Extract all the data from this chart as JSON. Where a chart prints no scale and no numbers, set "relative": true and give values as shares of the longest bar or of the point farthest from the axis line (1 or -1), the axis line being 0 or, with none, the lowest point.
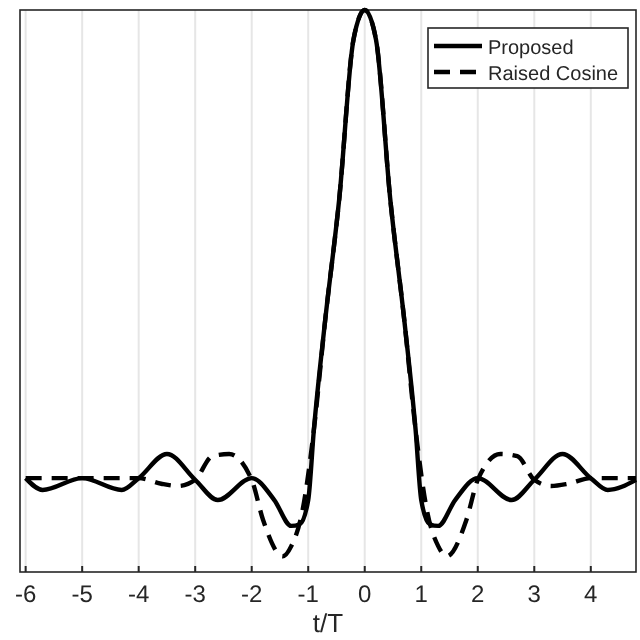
{
  "chart_data": {
    "type": "line",
    "xlabel": "t/T",
    "relative": true,
    "xlim": [
      -6.1,
      4.8
    ],
    "xticks": [
      -6,
      -5,
      -4,
      -3,
      -2,
      -1,
      0,
      1,
      2,
      3,
      4
    ],
    "grid": "x",
    "legend": "top right",
    "series": [
      {
        "name": "Proposed",
        "color": "#000000",
        "line_style": "solid",
        "x": [
          -6,
          -5.7,
          -5,
          -4.3,
          -4,
          -3.5,
          -3,
          -2.6,
          -2,
          -1.6,
          -1.3,
          -1.15,
          -1,
          -0.9,
          -0.7,
          -0.45,
          -0.2,
          0,
          0.2,
          0.45,
          0.7,
          0.9,
          1,
          1.15,
          1.3,
          1.6,
          2,
          2.6,
          3,
          3.5,
          4,
          4.3,
          4.8
        ],
        "values": [
          0.167,
          0.146,
          0.167,
          0.146,
          0.167,
          0.21,
          0.164,
          0.128,
          0.167,
          0.128,
          0.082,
          0.085,
          0.128,
          0.253,
          0.448,
          0.665,
          0.947,
          1,
          0.947,
          0.665,
          0.448,
          0.253,
          0.128,
          0.085,
          0.082,
          0.128,
          0.167,
          0.128,
          0.164,
          0.21,
          0.167,
          0.146,
          0.164
        ]
      },
      {
        "name": "Raised Cosine",
        "color": "#000000",
        "line_style": "dashed",
        "x": [
          -6,
          -5,
          -4,
          -3.6,
          -3.3,
          -3,
          -2.7,
          -2.4,
          -2,
          -1.8,
          -1.45,
          -1.3,
          -1.1,
          -0.9,
          -0.7,
          -0.45,
          -0.2,
          0,
          0.2,
          0.45,
          0.7,
          0.9,
          1.1,
          1.3,
          1.45,
          1.8,
          2,
          2.4,
          2.7,
          3,
          3.3,
          3.6,
          4,
          4.5,
          4.8
        ],
        "values": [
          0.167,
          0.167,
          0.167,
          0.157,
          0.153,
          0.164,
          0.206,
          0.21,
          0.164,
          0.093,
          0.028,
          0.046,
          0.11,
          0.253,
          0.448,
          0.665,
          0.947,
          1,
          0.947,
          0.665,
          0.448,
          0.253,
          0.11,
          0.046,
          0.028,
          0.093,
          0.164,
          0.21,
          0.206,
          0.164,
          0.153,
          0.157,
          0.167,
          0.167,
          0.167
        ]
      }
    ]
  }
}
